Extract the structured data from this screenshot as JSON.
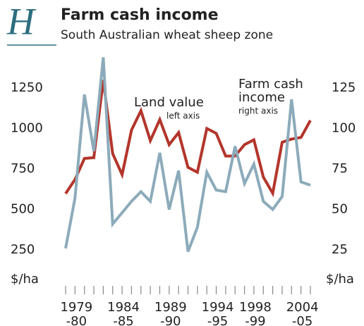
{
  "chart_data": {
    "type": "line",
    "badge": "H",
    "title": "Farm cash income",
    "subtitle": "South Australian wheat sheep zone",
    "ylabel": "$/ha",
    "y2label": "$/ha",
    "categories": [
      null,
      "1979 -80",
      null,
      null,
      null,
      null,
      "1984 -85",
      null,
      null,
      null,
      null,
      "1989 -90",
      null,
      null,
      null,
      null,
      "1994 -95",
      null,
      null,
      null,
      "1998 -99",
      null,
      null,
      null,
      null,
      "2004 -05",
      null
    ],
    "series": [
      {
        "name": "Land value",
        "note": "left axis",
        "color": "#b3352b",
        "axis": "y",
        "values": [
          598,
          685,
          815,
          820,
          1300,
          845,
          715,
          990,
          1110,
          925,
          1055,
          900,
          975,
          760,
          730,
          1000,
          970,
          830,
          830,
          900,
          930,
          700,
          600,
          915,
          935,
          945,
          1050
        ]
      },
      {
        "name": "Farm cash income",
        "note": "right axis",
        "color": "#8cabba",
        "axis": "y2",
        "values": [
          26,
          57,
          121,
          86,
          144,
          41,
          48,
          55,
          61,
          55,
          85,
          50,
          74,
          24,
          39,
          73,
          62,
          61,
          89,
          66,
          78,
          55,
          50,
          58,
          118,
          67,
          65
        ]
      }
    ],
    "ylim": [
      0,
      1450
    ],
    "yticks": [
      250,
      500,
      750,
      1000,
      1250
    ],
    "y2lim": [
      0,
      145
    ],
    "y2ticks": [
      25,
      50,
      75,
      100,
      125
    ],
    "grid": false
  }
}
